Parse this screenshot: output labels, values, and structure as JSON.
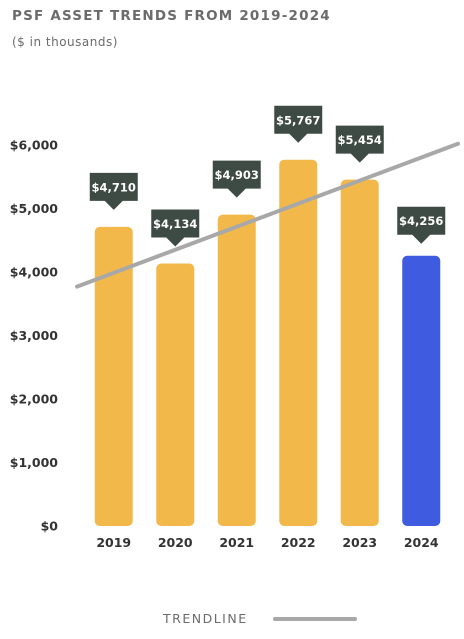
{
  "title": "PSF ASSET TRENDS FROM 2019-2024",
  "subtitle": "($ in thousands)",
  "legend": {
    "trendline_label": "TRENDLINE"
  },
  "colors": {
    "bar": "#F3B84A",
    "bar_highlight": "#3F5BE0",
    "callout": "#3D4B44",
    "trendline": "#A8A8A8",
    "axis_text": "#333333"
  },
  "chart_data": {
    "type": "bar",
    "categories": [
      "2019",
      "2020",
      "2021",
      "2022",
      "2023",
      "2024"
    ],
    "values": [
      4710,
      4134,
      4903,
      5767,
      5454,
      4256
    ],
    "data_labels": [
      "$4,710",
      "$4,134",
      "$4,903",
      "$5,767",
      "$5,454",
      "$4,256"
    ],
    "highlight_index": 5,
    "ylim": [
      0,
      6000
    ],
    "yticks": [
      0,
      1000,
      2000,
      3000,
      4000,
      5000,
      6000
    ],
    "ytick_labels": [
      "$0",
      "$1,000",
      "$2,000",
      "$3,000",
      "$4,000",
      "$5,000",
      "$6,000"
    ],
    "trendline": {
      "start": 3770,
      "end": 6020
    },
    "grid": false,
    "legend_position": "bottom"
  }
}
